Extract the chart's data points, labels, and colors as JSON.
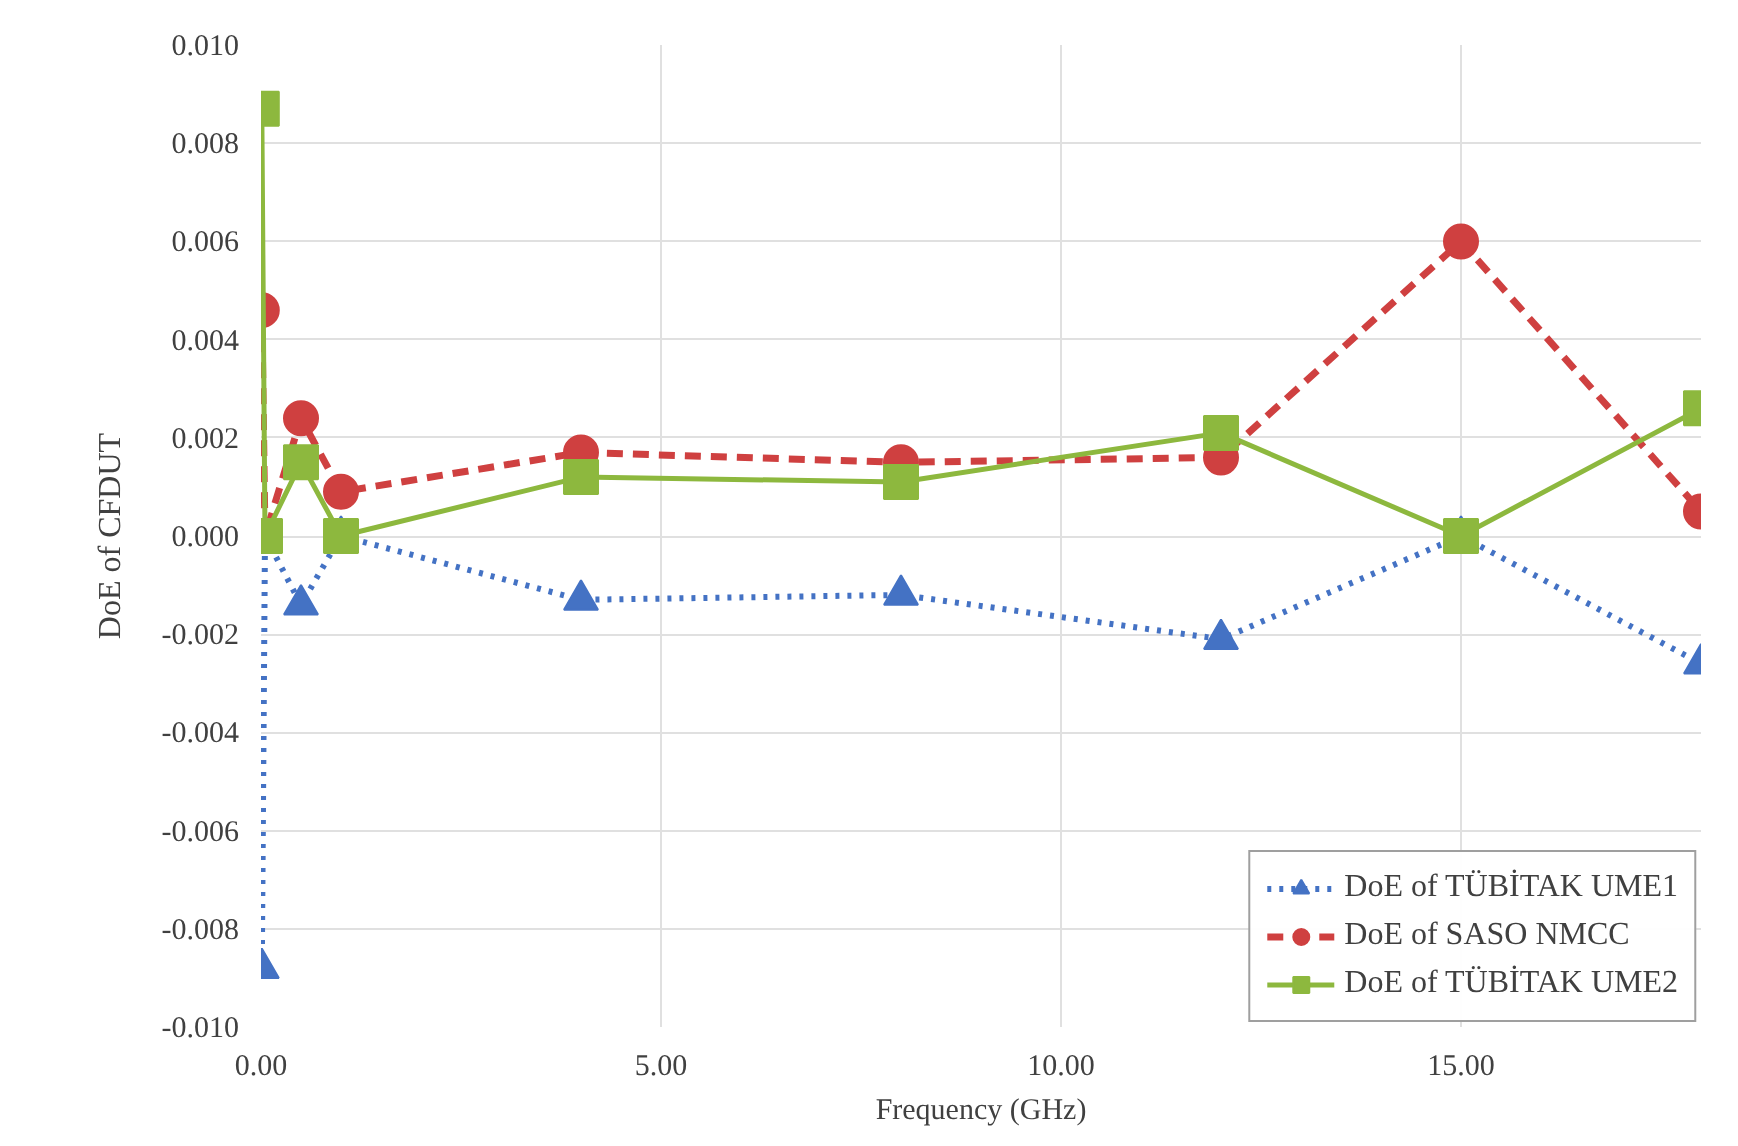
{
  "chart_data": {
    "type": "line",
    "xlabel": "Frequency (GHz)",
    "ylabel": "DoE of CFDUT",
    "x": [
      0.01,
      0.05,
      0.5,
      1,
      4,
      8,
      12,
      15,
      18
    ],
    "series": [
      {
        "name": "DoE of TÜBİTAK UME1",
        "color": "#4472c4",
        "marker": "triangle",
        "line_style": "dotted",
        "values": [
          -0.0088,
          0.0,
          -0.0014,
          0.0,
          -0.0013,
          -0.0012,
          -0.0021,
          0.0,
          -0.0026
        ]
      },
      {
        "name": "DoE of SASO NMCC",
        "color": "#cf4040",
        "marker": "circle",
        "line_style": "dashed",
        "values": [
          0.0046,
          0.0,
          0.0024,
          0.0009,
          0.0017,
          0.0015,
          0.0016,
          0.006,
          0.0005
        ]
      },
      {
        "name": "DoE of TÜBİTAK UME2",
        "color": "#8db83e",
        "marker": "square",
        "line_style": "solid",
        "values": [
          0.0087,
          0.0,
          0.0015,
          0.0,
          0.0012,
          0.0011,
          0.0021,
          0.0,
          0.0026
        ]
      }
    ],
    "xlim": [
      0,
      18
    ],
    "xticks": [
      {
        "value": 0,
        "label": "0.00"
      },
      {
        "value": 5,
        "label": "5.00"
      },
      {
        "value": 10,
        "label": "10.00"
      },
      {
        "value": 15,
        "label": "15.00"
      }
    ],
    "ylim": [
      -0.01,
      0.01
    ],
    "yticks": [
      {
        "value": -0.01,
        "label": "-0.010"
      },
      {
        "value": -0.008,
        "label": "-0.008"
      },
      {
        "value": -0.006,
        "label": "-0.006"
      },
      {
        "value": -0.004,
        "label": "-0.004"
      },
      {
        "value": -0.002,
        "label": "-0.002"
      },
      {
        "value": 0,
        "label": "0.000"
      },
      {
        "value": 0.002,
        "label": "0.002"
      },
      {
        "value": 0.004,
        "label": "0.004"
      },
      {
        "value": 0.006,
        "label": "0.006"
      },
      {
        "value": 0.008,
        "label": "0.008"
      },
      {
        "value": 0.01,
        "label": "0.010"
      }
    ],
    "grid": true,
    "legend": "bottom right"
  }
}
